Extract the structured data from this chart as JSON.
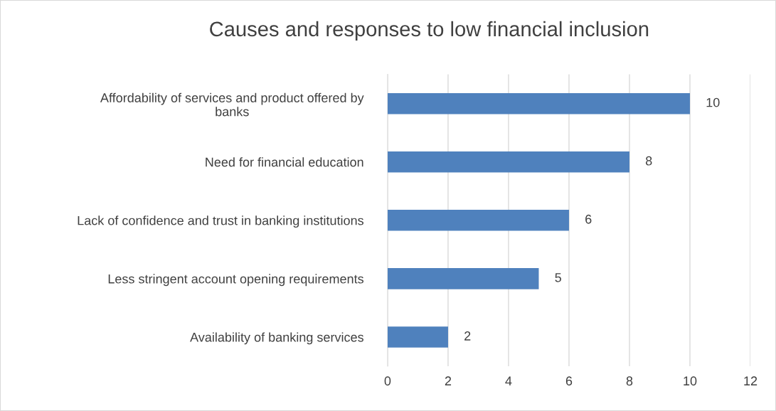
{
  "chart_data": {
    "type": "bar",
    "orientation": "horizontal",
    "title": "Causes and responses to low financial inclusion",
    "categories": [
      "Affordability of services and product offered by\nbanks",
      "Need for financial education",
      "Lack of confidence and trust in banking institutions",
      "Less stringent account opening requirements",
      "Availability of banking services"
    ],
    "values": [
      10,
      8,
      6,
      5,
      2
    ],
    "color": "#4f81bd",
    "xlim": [
      0,
      12
    ],
    "xticks": [
      0,
      2,
      4,
      6,
      8,
      10,
      12
    ],
    "grid": "x",
    "data_labels": true,
    "legend": false
  }
}
